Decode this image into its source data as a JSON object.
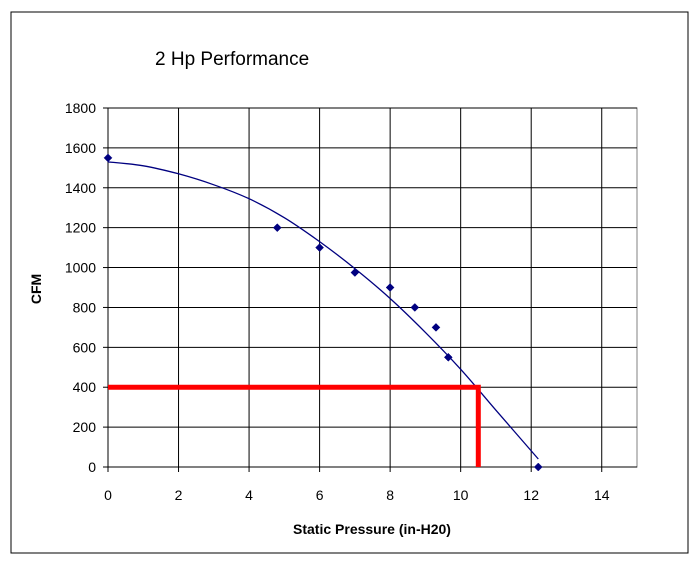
{
  "chart_data": {
    "type": "scatter",
    "title": "2 Hp Performance",
    "xlabel": "Static Pressure (in-H20)",
    "ylabel": "CFM",
    "xlim": [
      0,
      15
    ],
    "ylim": [
      0,
      1800
    ],
    "x_ticks": [
      0,
      2,
      4,
      6,
      8,
      10,
      12,
      14
    ],
    "y_ticks": [
      0,
      200,
      400,
      600,
      800,
      1000,
      1200,
      1400,
      1600,
      1800
    ],
    "grid": true,
    "legend": "none",
    "series": [
      {
        "kind": "markers",
        "marker": "diamond",
        "color": "#000080",
        "points": [
          {
            "x": 0,
            "y": 1550
          },
          {
            "x": 4.8,
            "y": 1200
          },
          {
            "x": 6,
            "y": 1100
          },
          {
            "x": 7,
            "y": 975
          },
          {
            "x": 8,
            "y": 900
          },
          {
            "x": 8.7,
            "y": 800
          },
          {
            "x": 9.3,
            "y": 700
          },
          {
            "x": 9.65,
            "y": 550
          },
          {
            "x": 12.2,
            "y": 0
          }
        ]
      },
      {
        "kind": "trendline",
        "color": "#000080",
        "points": [
          {
            "x": 0,
            "y": 1530
          },
          {
            "x": 1,
            "y": 1510
          },
          {
            "x": 2,
            "y": 1470
          },
          {
            "x": 3,
            "y": 1415
          },
          {
            "x": 4,
            "y": 1345
          },
          {
            "x": 5,
            "y": 1250
          },
          {
            "x": 6,
            "y": 1130
          },
          {
            "x": 7,
            "y": 995
          },
          {
            "x": 8,
            "y": 845
          },
          {
            "x": 9,
            "y": 675
          },
          {
            "x": 10,
            "y": 490
          },
          {
            "x": 11,
            "y": 285
          },
          {
            "x": 12.2,
            "y": 40
          }
        ]
      },
      {
        "kind": "reference-line",
        "color": "#ff0000",
        "points": [
          {
            "x": 0,
            "y": 400
          },
          {
            "x": 10.5,
            "y": 400
          },
          {
            "x": 10.5,
            "y": 0
          }
        ]
      }
    ]
  }
}
